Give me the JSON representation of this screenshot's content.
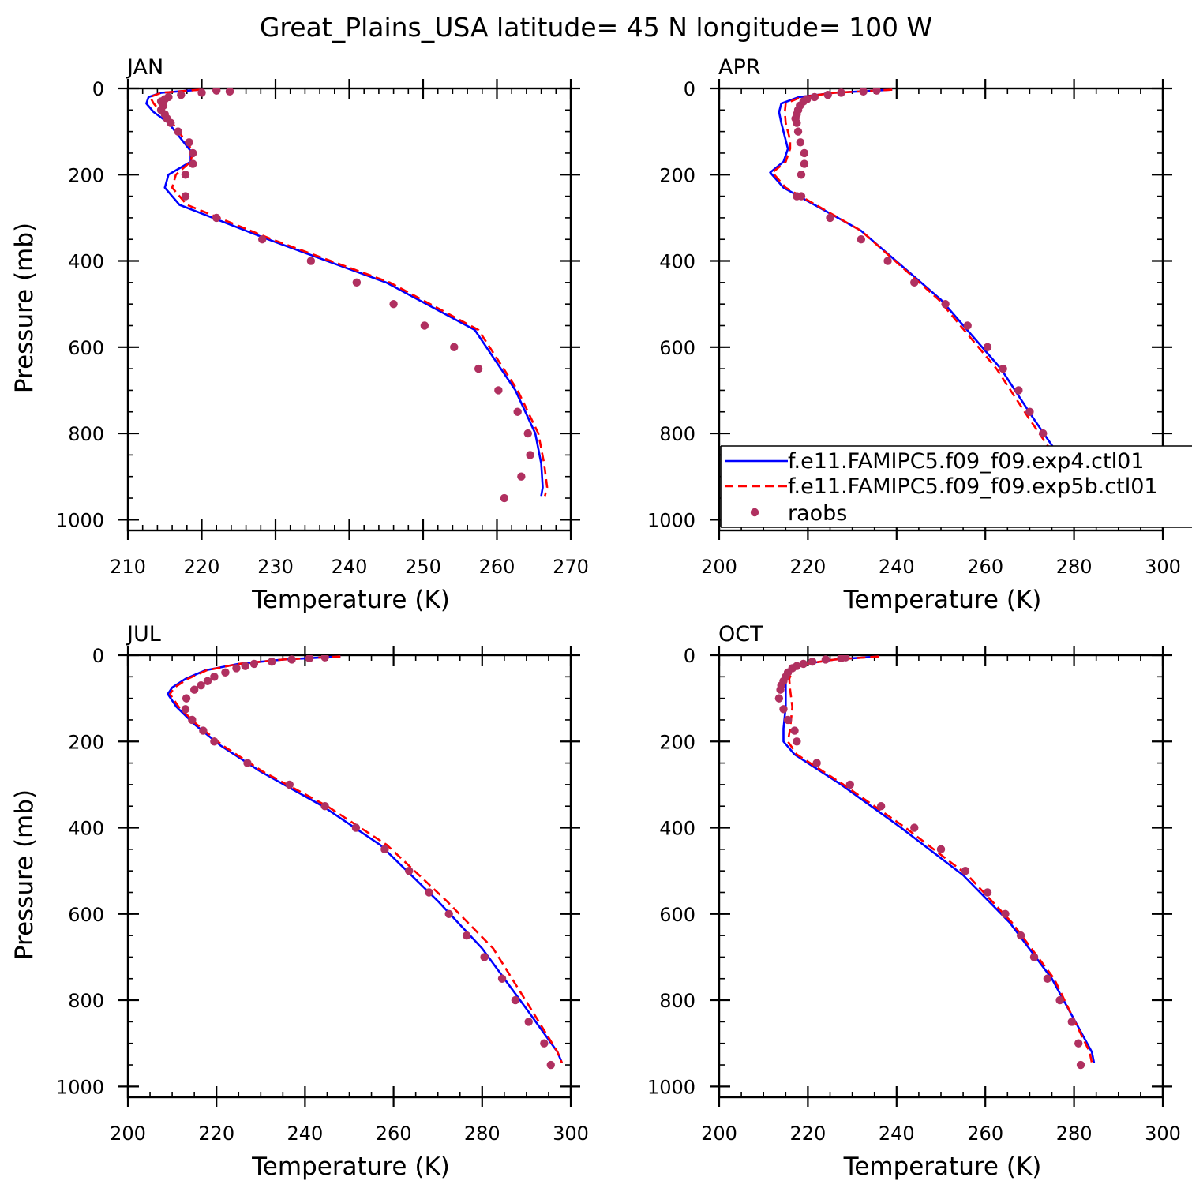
{
  "figure": {
    "title": "Great_Plains_USA  latitude= 45 N longitude= 100 W"
  },
  "colors": {
    "exp4": "#0000ff",
    "exp5b": "#ff0000",
    "raobs": "#b03060"
  },
  "legend": {
    "placement": "right-side of APR panel, near bottom",
    "entries": [
      {
        "label": "f.e11.FAMIPC5.f09_f09.exp4.ctl01",
        "style": "solid-blue"
      },
      {
        "label": "f.e11.FAMIPC5.f09_f09.exp5b.ctl01",
        "style": "dashed-red"
      },
      {
        "label": "raobs",
        "style": "dot"
      }
    ]
  },
  "chart_data": [
    {
      "type": "line",
      "panel": "JAN",
      "title": "JAN",
      "xlabel": "Temperature (K)",
      "ylabel": "Pressure (mb)",
      "xlim": [
        210,
        270
      ],
      "ylim": [
        1025,
        0
      ],
      "xticks": [
        210,
        220,
        230,
        240,
        250,
        260,
        270
      ],
      "yticks": [
        0,
        200,
        400,
        600,
        800,
        1000
      ],
      "series": [
        {
          "key": "exp4",
          "x": [
            219.8,
            214.5,
            212.8,
            212.5,
            213.5,
            215.5,
            218.5,
            218.5,
            215.5,
            215.0,
            217.0,
            229.0,
            245.0,
            257.0,
            262.5,
            265.2,
            266.0,
            266.2,
            266.0
          ],
          "y": [
            3,
            10,
            20,
            35,
            55,
            80,
            145,
            170,
            200,
            230,
            270,
            350,
            450,
            560,
            700,
            800,
            870,
            925,
            945
          ]
        },
        {
          "key": "exp5b",
          "x": [
            219.8,
            214.5,
            213.0,
            213.5,
            214.5,
            216.0,
            218.8,
            218.5,
            216.5,
            216.0,
            218.0,
            229.5,
            245.5,
            257.5,
            262.8,
            265.6,
            266.4,
            266.8,
            266.5
          ],
          "y": [
            3,
            10,
            20,
            35,
            55,
            80,
            145,
            170,
            200,
            230,
            270,
            350,
            450,
            560,
            700,
            800,
            870,
            925,
            945
          ]
        },
        {
          "key": "raobs",
          "x": [
            222.0,
            223.8,
            220.0,
            217.2,
            215.5,
            215.0,
            214.5,
            214.8,
            214.5,
            215.0,
            215.3,
            215.8,
            216.8,
            218.3,
            218.8,
            218.8,
            217.8,
            217.8,
            222.0,
            228.2,
            234.8,
            241.0,
            246.0,
            250.2,
            254.2,
            257.5,
            260.2,
            262.8,
            264.2,
            264.5,
            263.3,
            261.0
          ],
          "y": [
            5,
            7,
            10,
            15,
            20,
            25,
            30,
            40,
            50,
            60,
            70,
            80,
            100,
            125,
            150,
            175,
            200,
            250,
            300,
            350,
            400,
            450,
            500,
            550,
            600,
            650,
            700,
            750,
            800,
            850,
            900,
            950
          ]
        }
      ]
    },
    {
      "type": "line",
      "panel": "APR",
      "title": "APR",
      "xlabel": "Temperature (K)",
      "ylabel": "",
      "xlim": [
        200,
        300
      ],
      "ylim": [
        1025,
        0
      ],
      "xticks": [
        200,
        220,
        240,
        260,
        280,
        300
      ],
      "yticks": [
        0,
        200,
        400,
        600,
        800,
        1000
      ],
      "series": [
        {
          "key": "exp4",
          "x": [
            239.0,
            226.0,
            218.0,
            214.0,
            213.5,
            214.0,
            215.0,
            215.5,
            214.5,
            211.5,
            214.5,
            232.0,
            250.0,
            263.5,
            270.5,
            276.5,
            281.5,
            282.5
          ],
          "y": [
            3,
            10,
            20,
            35,
            55,
            80,
            120,
            140,
            170,
            195,
            230,
            330,
            490,
            650,
            760,
            850,
            930,
            945
          ]
        },
        {
          "key": "exp5b",
          "x": [
            239.0,
            226.0,
            218.5,
            215.0,
            214.8,
            215.0,
            216.0,
            216.0,
            215.0,
            212.0,
            215.0,
            232.0,
            249.5,
            262.5,
            269.5,
            275.5,
            281.0,
            282.0
          ],
          "y": [
            3,
            10,
            20,
            35,
            55,
            80,
            120,
            140,
            170,
            195,
            230,
            330,
            490,
            650,
            760,
            850,
            930,
            945
          ]
        },
        {
          "key": "raobs",
          "x": [
            235.5,
            232.5,
            227.5,
            224.5,
            221.5,
            219.8,
            219.0,
            218.2,
            217.8,
            217.5,
            217.2,
            217.5,
            217.8,
            218.3,
            219.2,
            219.2,
            218.5,
            217.5,
            218.5,
            225.0,
            232.0,
            238.0,
            244.0,
            251.0,
            256.0,
            260.5,
            264.0,
            267.5,
            270.0,
            273.0,
            276.0,
            278.0,
            279.5
          ],
          "y": [
            5,
            7,
            10,
            15,
            20,
            25,
            30,
            40,
            50,
            60,
            70,
            80,
            100,
            125,
            150,
            175,
            200,
            250,
            250,
            300,
            350,
            400,
            450,
            500,
            550,
            600,
            650,
            700,
            750,
            800,
            850,
            900,
            950
          ]
        }
      ]
    },
    {
      "type": "line",
      "panel": "JUL",
      "title": "JUL",
      "xlabel": "Temperature (K)",
      "ylabel": "Pressure (mb)",
      "xlim": [
        200,
        300
      ],
      "ylim": [
        1025,
        0
      ],
      "xticks": [
        200,
        220,
        240,
        260,
        280,
        300
      ],
      "yticks": [
        0,
        200,
        400,
        600,
        800,
        1000
      ],
      "series": [
        {
          "key": "exp4",
          "x": [
            248.0,
            235.0,
            225.0,
            217.5,
            213.0,
            210.0,
            209.0,
            211.0,
            215.0,
            221.0,
            230.0,
            244.0,
            257.0,
            270.0,
            280.0,
            290.0,
            297.0,
            298.0
          ],
          "y": [
            3,
            10,
            20,
            35,
            55,
            75,
            90,
            120,
            160,
            210,
            270,
            350,
            440,
            570,
            680,
            820,
            920,
            945
          ]
        },
        {
          "key": "exp5b",
          "x": [
            248.0,
            235.0,
            225.0,
            217.8,
            213.5,
            210.5,
            209.5,
            211.5,
            215.5,
            221.5,
            230.5,
            245.0,
            258.5,
            272.0,
            282.5,
            291.0,
            297.0,
            298.0
          ],
          "y": [
            3,
            10,
            20,
            35,
            55,
            75,
            90,
            120,
            160,
            210,
            270,
            350,
            440,
            570,
            680,
            820,
            920,
            945
          ]
        },
        {
          "key": "raobs",
          "x": [
            244.5,
            241.0,
            237.0,
            232.5,
            228.5,
            226.5,
            224.5,
            222.0,
            219.5,
            218.0,
            216.5,
            215.0,
            213.2,
            213.0,
            214.5,
            217.0,
            219.5,
            227.0,
            236.5,
            244.5,
            251.5,
            258.0,
            263.5,
            268.0,
            272.5,
            276.5,
            280.5,
            284.5,
            287.5,
            290.5,
            294.0,
            295.5
          ],
          "y": [
            5,
            7,
            10,
            15,
            20,
            25,
            30,
            40,
            50,
            60,
            70,
            80,
            100,
            125,
            150,
            175,
            200,
            250,
            300,
            350,
            400,
            450,
            500,
            550,
            600,
            650,
            700,
            750,
            800,
            850,
            900,
            950
          ]
        }
      ]
    },
    {
      "type": "line",
      "panel": "OCT",
      "title": "OCT",
      "xlabel": "Temperature (K)",
      "ylabel": "",
      "xlim": [
        200,
        300
      ],
      "ylim": [
        1025,
        0
      ],
      "xticks": [
        200,
        220,
        240,
        260,
        280,
        300
      ],
      "yticks": [
        0,
        200,
        400,
        600,
        800,
        1000
      ],
      "series": [
        {
          "key": "exp4",
          "x": [
            236.0,
            226.0,
            219.5,
            216.0,
            215.0,
            215.0,
            215.0,
            214.5,
            214.5,
            217.0,
            227.5,
            241.0,
            255.0,
            265.5,
            275.0,
            284.0,
            284.5
          ],
          "y": [
            3,
            10,
            20,
            35,
            55,
            80,
            120,
            170,
            200,
            230,
            300,
            400,
            510,
            620,
            750,
            920,
            945
          ]
        },
        {
          "key": "exp5b",
          "x": [
            236.0,
            226.0,
            219.5,
            216.5,
            215.8,
            216.0,
            216.5,
            216.0,
            215.5,
            217.5,
            228.0,
            242.0,
            256.0,
            266.0,
            275.5,
            283.5,
            284.0
          ],
          "y": [
            3,
            10,
            20,
            35,
            55,
            80,
            120,
            170,
            200,
            230,
            300,
            400,
            510,
            620,
            750,
            920,
            945
          ]
        },
        {
          "key": "raobs",
          "x": [
            228.5,
            227.5,
            224.0,
            221.0,
            219.0,
            217.5,
            216.5,
            215.5,
            215.0,
            214.5,
            214.0,
            213.8,
            213.5,
            214.5,
            215.5,
            217.0,
            217.5,
            222.0,
            229.5,
            236.5,
            244.0,
            250.0,
            255.5,
            260.5,
            264.5,
            268.0,
            271.0,
            274.0,
            276.8,
            279.5,
            281.0,
            281.5
          ],
          "y": [
            5,
            7,
            10,
            15,
            20,
            25,
            30,
            40,
            50,
            60,
            70,
            80,
            100,
            125,
            150,
            175,
            200,
            250,
            300,
            350,
            400,
            450,
            500,
            550,
            600,
            650,
            700,
            750,
            800,
            850,
            900,
            950
          ]
        }
      ]
    }
  ]
}
